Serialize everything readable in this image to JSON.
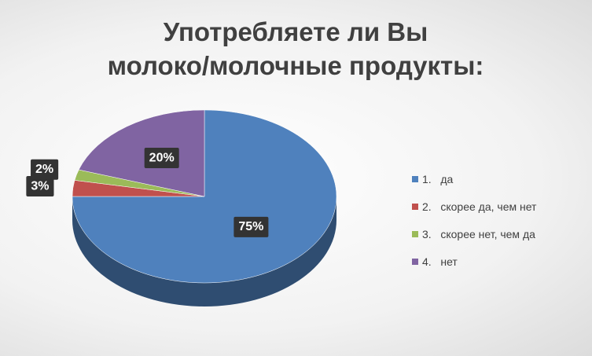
{
  "chart_data": {
    "type": "pie3d",
    "title": [
      "Употребляете ли Вы",
      "молоко/молочные продукты:"
    ],
    "categories": [
      "1.\tда",
      "2.\tскорее да, чем нет",
      "3.\tскорее нет, чем да",
      "4.\tнет"
    ],
    "values": [
      75,
      3,
      2,
      20
    ],
    "value_labels": [
      "75%",
      "3%",
      "2%",
      "20%"
    ],
    "colors": [
      "#4f81bd",
      "#c0504d",
      "#9bbb59",
      "#8064a2"
    ],
    "legend": "right"
  }
}
